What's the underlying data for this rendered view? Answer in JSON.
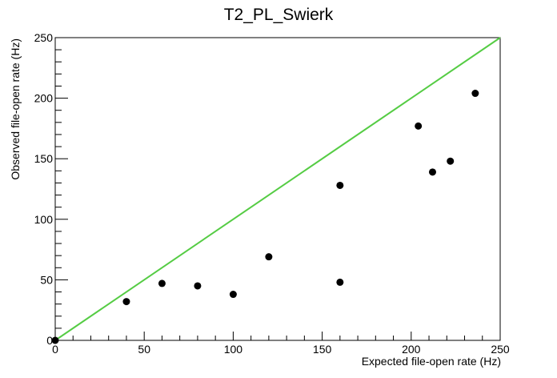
{
  "chart_data": {
    "type": "scatter",
    "title": "T2_PL_Swierk",
    "xlabel": "Expected file-open rate (Hz)",
    "ylabel": "Observed file-open rate (Hz)",
    "xlim": [
      0,
      250
    ],
    "ylim": [
      0,
      250
    ],
    "x_ticks": [
      0,
      50,
      100,
      150,
      200,
      250
    ],
    "y_ticks": [
      0,
      50,
      100,
      150,
      200,
      250
    ],
    "grid": false,
    "reference_line": {
      "x": [
        0,
        250
      ],
      "y": [
        0,
        250
      ],
      "color": "#55cc44"
    },
    "series": [
      {
        "color": "#000000",
        "points": [
          [
            0,
            0
          ],
          [
            40,
            32
          ],
          [
            60,
            47
          ],
          [
            80,
            45
          ],
          [
            100,
            38
          ],
          [
            120,
            69
          ],
          [
            160,
            48
          ],
          [
            160,
            128
          ],
          [
            204,
            177
          ],
          [
            212,
            139
          ],
          [
            222,
            148
          ],
          [
            236,
            204
          ]
        ]
      }
    ]
  }
}
